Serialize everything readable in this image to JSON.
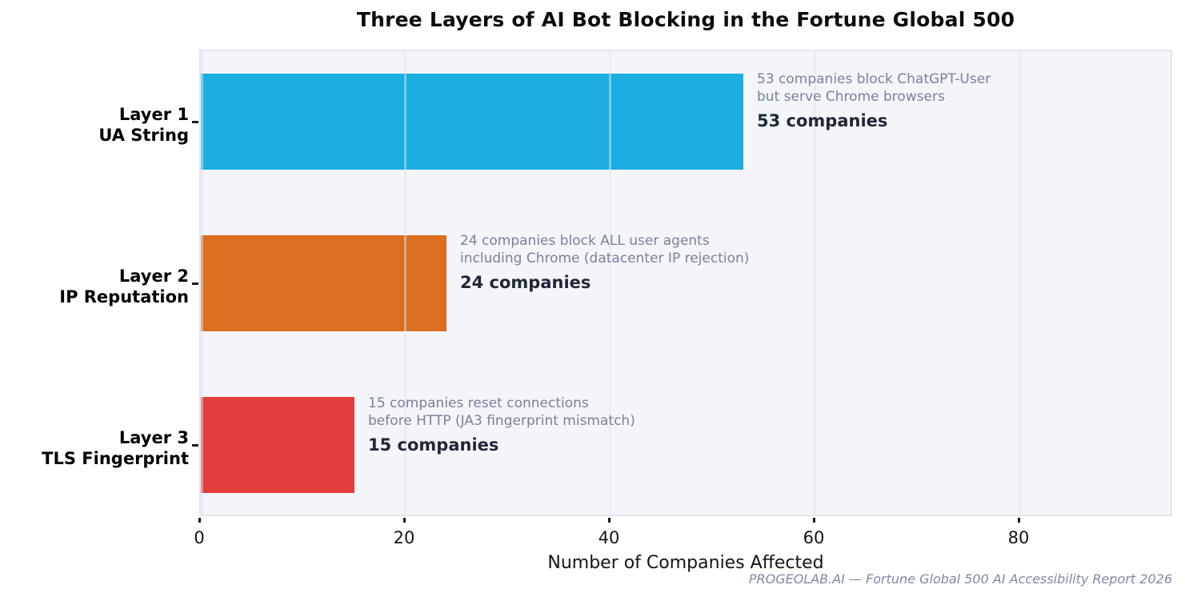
{
  "page": {
    "title": "Three Layers of AI Bot Blocking in the Fortune Global 500",
    "footer": "PROGEOLAB.AI — Fortune Global 500 AI Accessibility Report 2026"
  },
  "chart_data": {
    "type": "bar",
    "orientation": "horizontal",
    "title": "Three Layers of AI Bot Blocking in the Fortune Global 500",
    "xlabel": "Number of Companies Affected",
    "ylabel": "",
    "xlim": [
      0,
      95
    ],
    "grid": "vertical gridlines at x ticks, drawn translucent over bars",
    "legend": "none",
    "x_tick_values": [
      0,
      20,
      40,
      60,
      80
    ],
    "x_tick_labels": [
      "0",
      "20",
      "40",
      "60",
      "80"
    ],
    "categories": [
      "Layer 1\nUA String",
      "Layer 2\nIP Reputation",
      "Layer 3\nTLS Fingerprint"
    ],
    "values": [
      53,
      24,
      15
    ],
    "bar_colors": [
      "#1CAEE0",
      "#DC6E21",
      "#E43D3D"
    ],
    "bars": [
      {
        "label_line1": "Layer 1",
        "label_line2": "UA String",
        "value": 53,
        "color": "#1CAEE0",
        "annotation_line1": "53 companies block ChatGPT-User",
        "annotation_line2": "but serve Chrome browsers",
        "value_label": "53 companies"
      },
      {
        "label_line1": "Layer 2",
        "label_line2": "IP Reputation",
        "value": 24,
        "color": "#DC6E21",
        "annotation_line1": "24 companies block ALL user agents",
        "annotation_line2": "including Chrome (datacenter IP rejection)",
        "value_label": "24 companies"
      },
      {
        "label_line1": "Layer 3",
        "label_line2": "TLS Fingerprint",
        "value": 15,
        "color": "#E43D3D",
        "annotation_line1": "15 companies reset connections",
        "annotation_line2": "before HTTP (JA3 fingerprint mismatch)",
        "value_label": "15 companies"
      }
    ],
    "source_note": "PROGEOLAB.AI — Fortune Global 500 AI Accessibility Report 2026"
  },
  "colors": {
    "page_bg": "#FFFFFF",
    "plot_bg": "#F4F5F9",
    "plot_border": "#E4E7EF",
    "gridline_overlay": "rgba(220,230,243,0.5)",
    "annotation_text": "#76829B",
    "value_label_text": "#1F2838",
    "footer_text": "#7B8AA3",
    "axis_text": "#141414",
    "bar_layer1": "#1CAEE0",
    "bar_layer2": "#DC6E21",
    "bar_layer3": "#E43D3D"
  }
}
